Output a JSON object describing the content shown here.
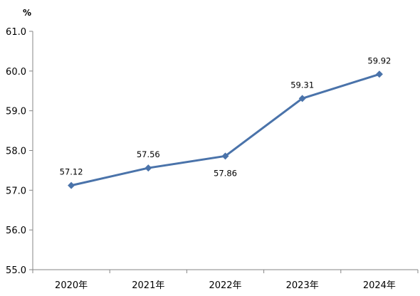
{
  "chart_data": {
    "type": "line",
    "title": "",
    "xlabel": "",
    "ylabel": "%",
    "categories": [
      "2020年",
      "2021年",
      "2022年",
      "2023年",
      "2024年"
    ],
    "series": [
      {
        "values": [
          57.12,
          57.56,
          57.86,
          59.31,
          59.92
        ],
        "data_labels": [
          "57.12",
          "57.56",
          "57.86",
          "59.31",
          "59.92"
        ],
        "color": "#4A73AA",
        "marker": "diamond"
      }
    ],
    "ylim": [
      55.0,
      61.0
    ],
    "yticks": [
      "55.0",
      "56.0",
      "57.0",
      "58.0",
      "59.0",
      "60.0",
      "61.0"
    ],
    "grid": false,
    "legend": "none",
    "axis_color": "#868686"
  }
}
